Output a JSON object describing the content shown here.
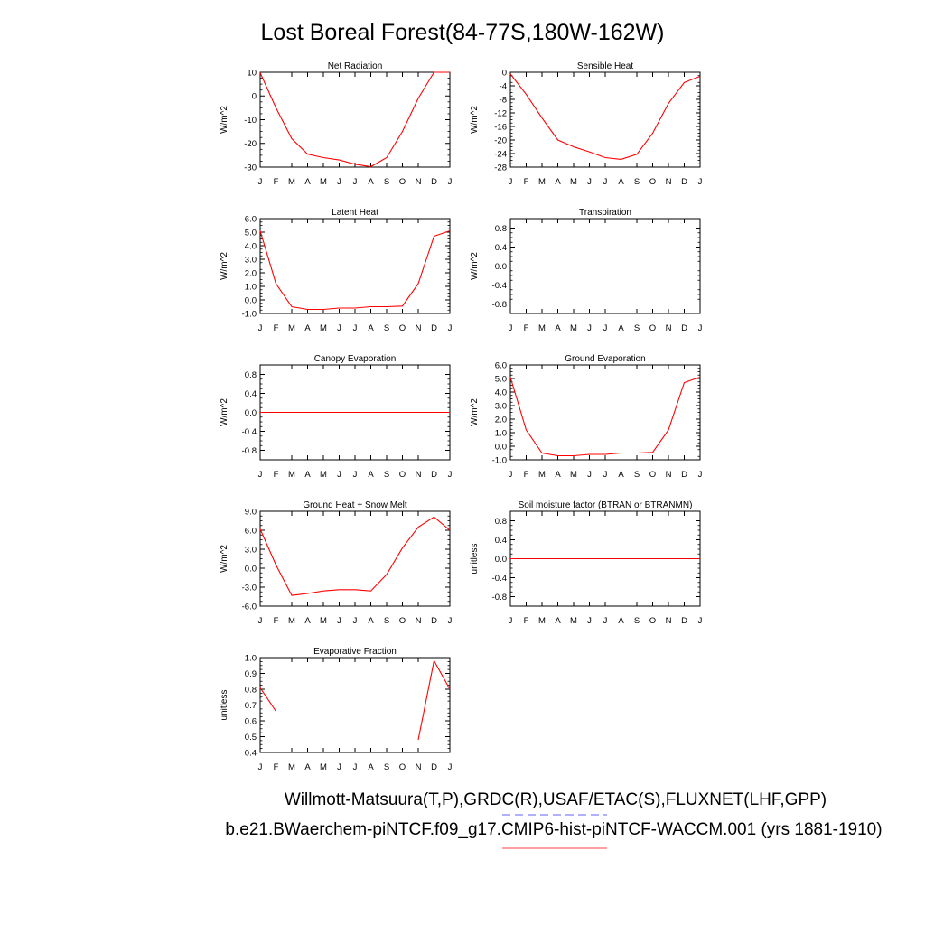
{
  "page": {
    "title": "Lost Boreal Forest(84-77S,180W-162W)",
    "footer_line1": "Willmott-Matsuura(T,P),GRDC(R),USAF/ETAC(S),FLUXNET(LHF,GPP)",
    "footer_line2": "b.e21.BWaerchem-piNTCF.f09_g17.CMIP6-hist-piNTCF-WACCM.001 (yrs 1881-1910)",
    "colors": {
      "series": "#ff0000",
      "axis": "#000000",
      "footer_dash1": "#8080ff",
      "footer_dash2": "#ff8080"
    }
  },
  "chart_data": [
    {
      "type": "line",
      "title": "Net Radiation",
      "ylabel": "W/m^2",
      "categories": [
        "J",
        "F",
        "M",
        "A",
        "M",
        "J",
        "J",
        "A",
        "S",
        "O",
        "N",
        "D",
        "J"
      ],
      "ylim": [
        -30,
        10
      ],
      "yticks": [
        10,
        0,
        -10,
        -20,
        -30
      ],
      "ytick_labels": [
        "10",
        "0",
        "-10",
        "-20",
        "-30"
      ],
      "values": [
        9.8,
        -5,
        -18,
        -24.5,
        -26,
        -27,
        -28.8,
        -29.8,
        -26,
        -15,
        -1,
        10,
        10
      ]
    },
    {
      "type": "line",
      "title": "Sensible Heat",
      "ylabel": "W/m^2",
      "categories": [
        "J",
        "F",
        "M",
        "A",
        "M",
        "J",
        "J",
        "A",
        "S",
        "O",
        "N",
        "D",
        "J"
      ],
      "ylim": [
        -28,
        0
      ],
      "yticks": [
        0,
        -4,
        -8,
        -12,
        -16,
        -20,
        -24,
        -28
      ],
      "ytick_labels": [
        "0",
        "-4",
        "-8",
        "-12",
        "-16",
        "-20",
        "-24",
        "-28"
      ],
      "values": [
        -0.5,
        -6.5,
        -13.5,
        -20,
        -22,
        -23.5,
        -25.2,
        -25.7,
        -24.2,
        -18,
        -9.2,
        -3,
        -1.2
      ]
    },
    {
      "type": "line",
      "title": "Latent Heat",
      "ylabel": "W/m^2",
      "categories": [
        "J",
        "F",
        "M",
        "A",
        "M",
        "J",
        "J",
        "A",
        "S",
        "O",
        "N",
        "D",
        "J"
      ],
      "ylim": [
        -1,
        6
      ],
      "yticks": [
        6,
        5,
        4,
        3,
        2,
        1,
        0,
        -1
      ],
      "ytick_labels": [
        "6.0",
        "5.0",
        "4.0",
        "3.0",
        "2.0",
        "1.0",
        "0.0",
        "-1.0"
      ],
      "values": [
        5.1,
        1.2,
        -0.5,
        -0.7,
        -0.7,
        -0.6,
        -0.6,
        -0.5,
        -0.5,
        -0.45,
        1.2,
        4.7,
        5.1
      ]
    },
    {
      "type": "line",
      "title": "Transpiration",
      "ylabel": "W/m^2",
      "categories": [
        "J",
        "F",
        "M",
        "A",
        "M",
        "J",
        "J",
        "A",
        "S",
        "O",
        "N",
        "D",
        "J"
      ],
      "ylim": [
        -1,
        1
      ],
      "yticks": [
        0.8,
        0.4,
        0,
        -0.4,
        -0.8
      ],
      "ytick_labels": [
        "0.8",
        "0.4",
        "0.0",
        "-0.4",
        "-0.8"
      ],
      "values": [
        0,
        0,
        0,
        0,
        0,
        0,
        0,
        0,
        0,
        0,
        0,
        0,
        0
      ]
    },
    {
      "type": "line",
      "title": "Canopy Evaporation",
      "ylabel": "W/m^2",
      "categories": [
        "J",
        "F",
        "M",
        "A",
        "M",
        "J",
        "J",
        "A",
        "S",
        "O",
        "N",
        "D",
        "J"
      ],
      "ylim": [
        -1,
        1
      ],
      "yticks": [
        0.8,
        0.4,
        0,
        -0.4,
        -0.8
      ],
      "ytick_labels": [
        "0.8",
        "0.4",
        "0.0",
        "-0.4",
        "-0.8"
      ],
      "values": [
        0,
        0,
        0,
        0,
        0,
        0,
        0,
        0,
        0,
        0,
        0,
        0,
        0
      ]
    },
    {
      "type": "line",
      "title": "Ground Evaporation",
      "ylabel": "W/m^2",
      "categories": [
        "J",
        "F",
        "M",
        "A",
        "M",
        "J",
        "J",
        "A",
        "S",
        "O",
        "N",
        "D",
        "J"
      ],
      "ylim": [
        -1,
        6
      ],
      "yticks": [
        6,
        5,
        4,
        3,
        2,
        1,
        0,
        -1
      ],
      "ytick_labels": [
        "6.0",
        "5.0",
        "4.0",
        "3.0",
        "2.0",
        "1.0",
        "0.0",
        "-1.0"
      ],
      "values": [
        5.1,
        1.2,
        -0.5,
        -0.7,
        -0.7,
        -0.6,
        -0.6,
        -0.5,
        -0.5,
        -0.45,
        1.2,
        4.7,
        5.1
      ]
    },
    {
      "type": "line",
      "title": "Ground Heat + Snow Melt",
      "ylabel": "W/m^2",
      "categories": [
        "J",
        "F",
        "M",
        "A",
        "M",
        "J",
        "J",
        "A",
        "S",
        "O",
        "N",
        "D",
        "J"
      ],
      "ylim": [
        -6,
        9
      ],
      "yticks": [
        9,
        6,
        3,
        0,
        -3,
        -6
      ],
      "ytick_labels": [
        "9.0",
        "6.0",
        "3.0",
        "0.0",
        "-3.0",
        "-6.0"
      ],
      "values": [
        6.2,
        0.5,
        -4.3,
        -4,
        -3.6,
        -3.4,
        -3.4,
        -3.6,
        -1,
        3.2,
        6.5,
        8.1,
        6
      ]
    },
    {
      "type": "line",
      "title": "Soil moisture factor (BTRAN or BTRANMN)",
      "ylabel": "unitless",
      "categories": [
        "J",
        "F",
        "M",
        "A",
        "M",
        "J",
        "J",
        "A",
        "S",
        "O",
        "N",
        "D",
        "J"
      ],
      "ylim": [
        -1,
        1
      ],
      "yticks": [
        0.8,
        0.4,
        0,
        -0.4,
        -0.8
      ],
      "ytick_labels": [
        "0.8",
        "0.4",
        "0.0",
        "-0.4",
        "-0.8"
      ],
      "values": [
        0,
        0,
        0,
        0,
        0,
        0,
        0,
        0,
        0,
        0,
        0,
        0,
        0
      ]
    },
    {
      "type": "line",
      "title": "Evaporative Fraction",
      "ylabel": "unitless",
      "categories": [
        "J",
        "F",
        "M",
        "A",
        "M",
        "J",
        "J",
        "A",
        "S",
        "O",
        "N",
        "D",
        "J"
      ],
      "ylim": [
        0.4,
        1.0
      ],
      "yticks": [
        1.0,
        0.9,
        0.8,
        0.7,
        0.6,
        0.5,
        0.4
      ],
      "ytick_labels": [
        "1.0",
        "0.9",
        "0.8",
        "0.7",
        "0.6",
        "0.5",
        "0.4"
      ],
      "values": [
        0.81,
        0.66,
        null,
        null,
        null,
        null,
        null,
        null,
        null,
        null,
        0.48,
        0.98,
        0.8
      ]
    }
  ]
}
